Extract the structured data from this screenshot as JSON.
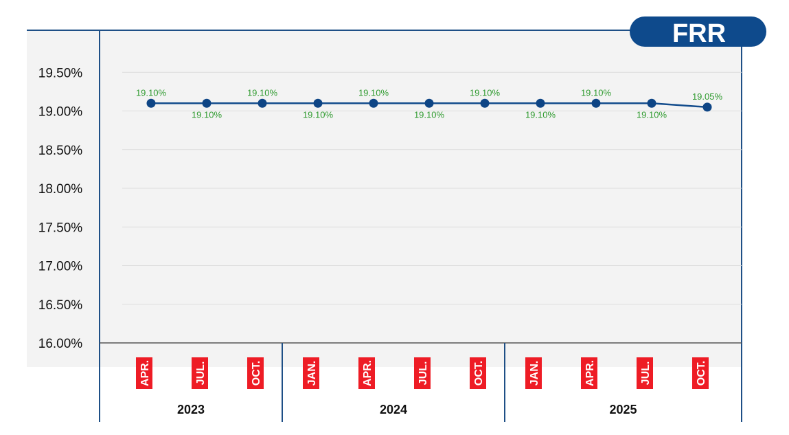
{
  "badge": {
    "label": "FRR"
  },
  "colors": {
    "line": "#134c8c",
    "marker": "#0e4585",
    "data_label": "#2e9a2e",
    "month_label_bg": "#ee1c25",
    "badge_bg": "#0e4a8c",
    "frame": "#1e4f86",
    "plot_bg": "#f3f3f3"
  },
  "chart_data": {
    "type": "line",
    "title": "FRR",
    "x": [
      "APR.",
      "JUL.",
      "OCT.",
      "JAN.",
      "APR.",
      "JUL.",
      "OCT.",
      "JAN.",
      "APR.",
      "JUL.",
      "OCT."
    ],
    "year_groups": [
      {
        "year": "2023",
        "months": [
          "APR.",
          "JUL.",
          "OCT."
        ]
      },
      {
        "year": "2024",
        "months": [
          "JAN.",
          "APR.",
          "JUL.",
          "OCT."
        ]
      },
      {
        "year": "2025",
        "months": [
          "JAN.",
          "APR.",
          "JUL.",
          "OCT."
        ]
      }
    ],
    "series": [
      {
        "values": [
          19.1,
          19.1,
          19.1,
          19.1,
          19.1,
          19.1,
          19.1,
          19.1,
          19.1,
          19.1,
          19.05
        ],
        "labels": [
          "19.10%",
          "19.10%",
          "19.10%",
          "19.10%",
          "19.10%",
          "19.10%",
          "19.10%",
          "19.10%",
          "19.10%",
          "19.10%",
          "19.05%"
        ],
        "label_positions": [
          "above",
          "below",
          "above",
          "below",
          "above",
          "below",
          "above",
          "below",
          "above",
          "below",
          "above"
        ]
      }
    ],
    "yticks": [
      16.0,
      16.5,
      17.0,
      17.5,
      18.0,
      18.5,
      19.0,
      19.5
    ],
    "ytick_labels": [
      "16.00%",
      "16.50%",
      "17.00%",
      "17.50%",
      "18.00%",
      "18.50%",
      "19.00%",
      "19.50%"
    ],
    "ylim": [
      16.0,
      19.95
    ],
    "xlabel": "",
    "ylabel": "",
    "grid": true
  }
}
